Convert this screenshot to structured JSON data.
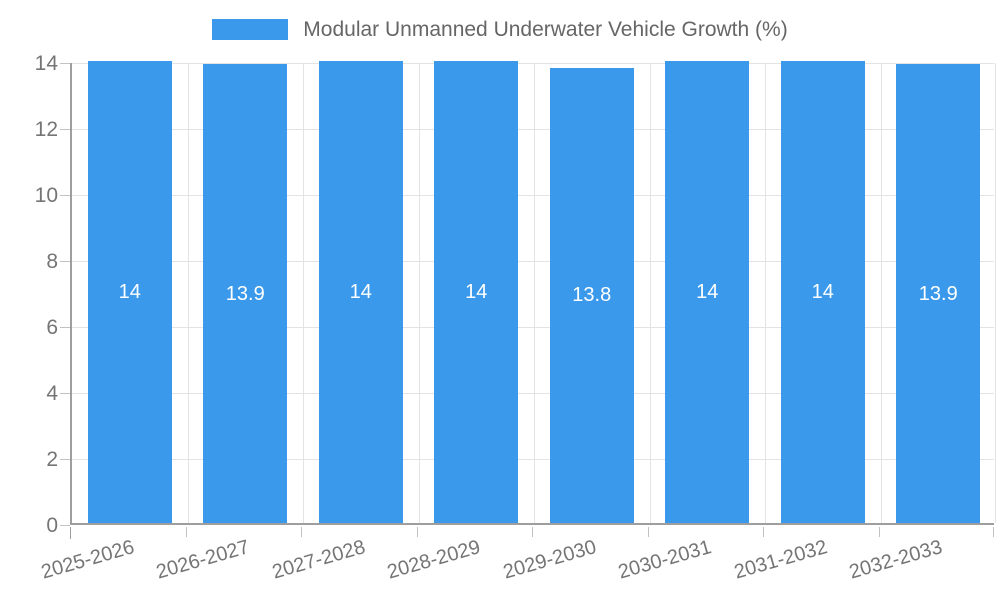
{
  "chart_data": {
    "type": "bar",
    "title": "Modular Unmanned Underwater Vehicle Growth (%)",
    "categories": [
      "2025-2026",
      "2026-2027",
      "2027-2028",
      "2028-2029",
      "2029-2030",
      "2030-2031",
      "2031-2032",
      "2032-2033"
    ],
    "values": [
      14,
      13.9,
      14,
      14,
      13.8,
      14,
      14,
      13.9
    ],
    "bar_labels": [
      "14",
      "13.9",
      "14",
      "14",
      "13.8",
      "14",
      "14",
      "13.9"
    ],
    "xlabel": "",
    "ylabel": "",
    "ylim": [
      0,
      14
    ],
    "yticks": [
      0,
      2,
      4,
      6,
      8,
      10,
      12,
      14
    ],
    "grid": true,
    "legend_position": "top",
    "colors": {
      "bar": "#3B99EC",
      "bar_label": "#FFFFFF",
      "axis_line": "#9E9E9E",
      "gridline": "#E3E3E3",
      "tick_mark": "#C2C2C2",
      "tick_text": "#757575",
      "legend_text": "#666666",
      "background": "#FFFFFF"
    }
  }
}
